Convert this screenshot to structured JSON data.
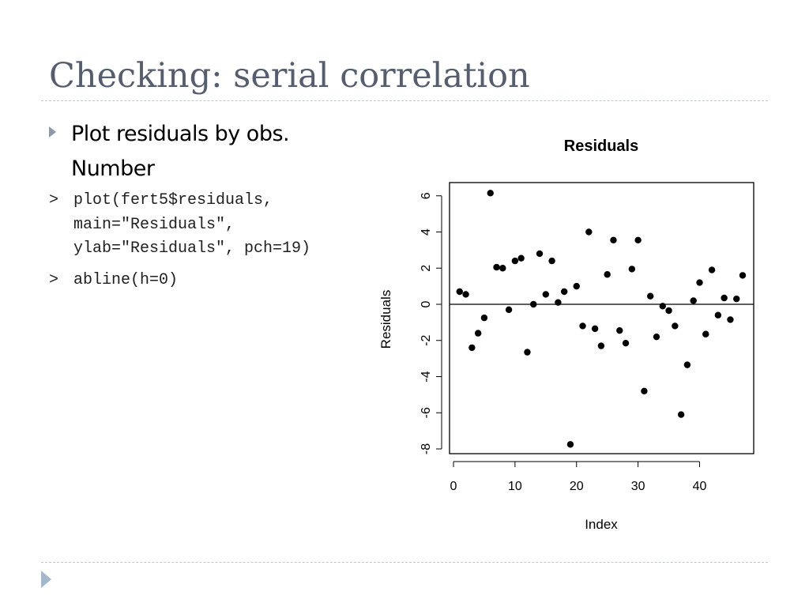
{
  "slide": {
    "title": "Checking: serial correlation",
    "bullet": "Plot residuals by obs. Number"
  },
  "code": {
    "prompt": ">",
    "block1": [
      "plot(fert5$residuals,",
      "main=\"Residuals\",",
      "ylab=\"Residuals\", pch=19)"
    ],
    "block2": [
      "abline(h=0)"
    ]
  },
  "colors": {
    "title": "#555d6e",
    "accent": "#a3b8cc",
    "rule": "#b9c8d6",
    "points": "#000000"
  },
  "icons": {
    "bullet": "triangle-right-icon",
    "nav": "triangle-right-icon"
  },
  "chart_data": {
    "type": "scatter",
    "title": "Residuals",
    "xlabel": "Index",
    "ylabel": "Residuals",
    "xlim": [
      0,
      47
    ],
    "ylim": [
      -8,
      6.2
    ],
    "xticks": [
      0,
      10,
      20,
      30,
      40
    ],
    "yticks": [
      -8,
      -6,
      -4,
      -2,
      0,
      2,
      4,
      6
    ],
    "hline": 0,
    "grid": false,
    "legend": "none",
    "x": [
      1,
      2,
      3,
      4,
      5,
      6,
      7,
      8,
      9,
      10,
      11,
      12,
      13,
      14,
      15,
      16,
      17,
      18,
      19,
      20,
      21,
      22,
      23,
      24,
      25,
      26,
      27,
      28,
      29,
      30,
      31,
      32,
      33,
      34,
      35,
      36,
      37,
      38,
      39,
      40,
      41,
      42,
      43,
      44,
      45,
      46,
      47
    ],
    "y": [
      0.7,
      0.55,
      -2.4,
      -1.6,
      -0.75,
      6.15,
      2.05,
      2.0,
      -0.3,
      2.4,
      2.55,
      -2.65,
      0.0,
      2.8,
      0.55,
      2.4,
      0.1,
      0.7,
      -7.75,
      1.0,
      -1.2,
      4.0,
      -1.35,
      -2.3,
      1.65,
      3.55,
      -1.45,
      -2.15,
      1.95,
      3.55,
      -4.8,
      0.45,
      -1.8,
      -0.1,
      -0.35,
      -1.2,
      -6.1,
      -3.35,
      0.2,
      1.2,
      -1.65,
      1.9,
      -0.6,
      0.35,
      -0.85,
      0.3,
      1.6
    ]
  }
}
